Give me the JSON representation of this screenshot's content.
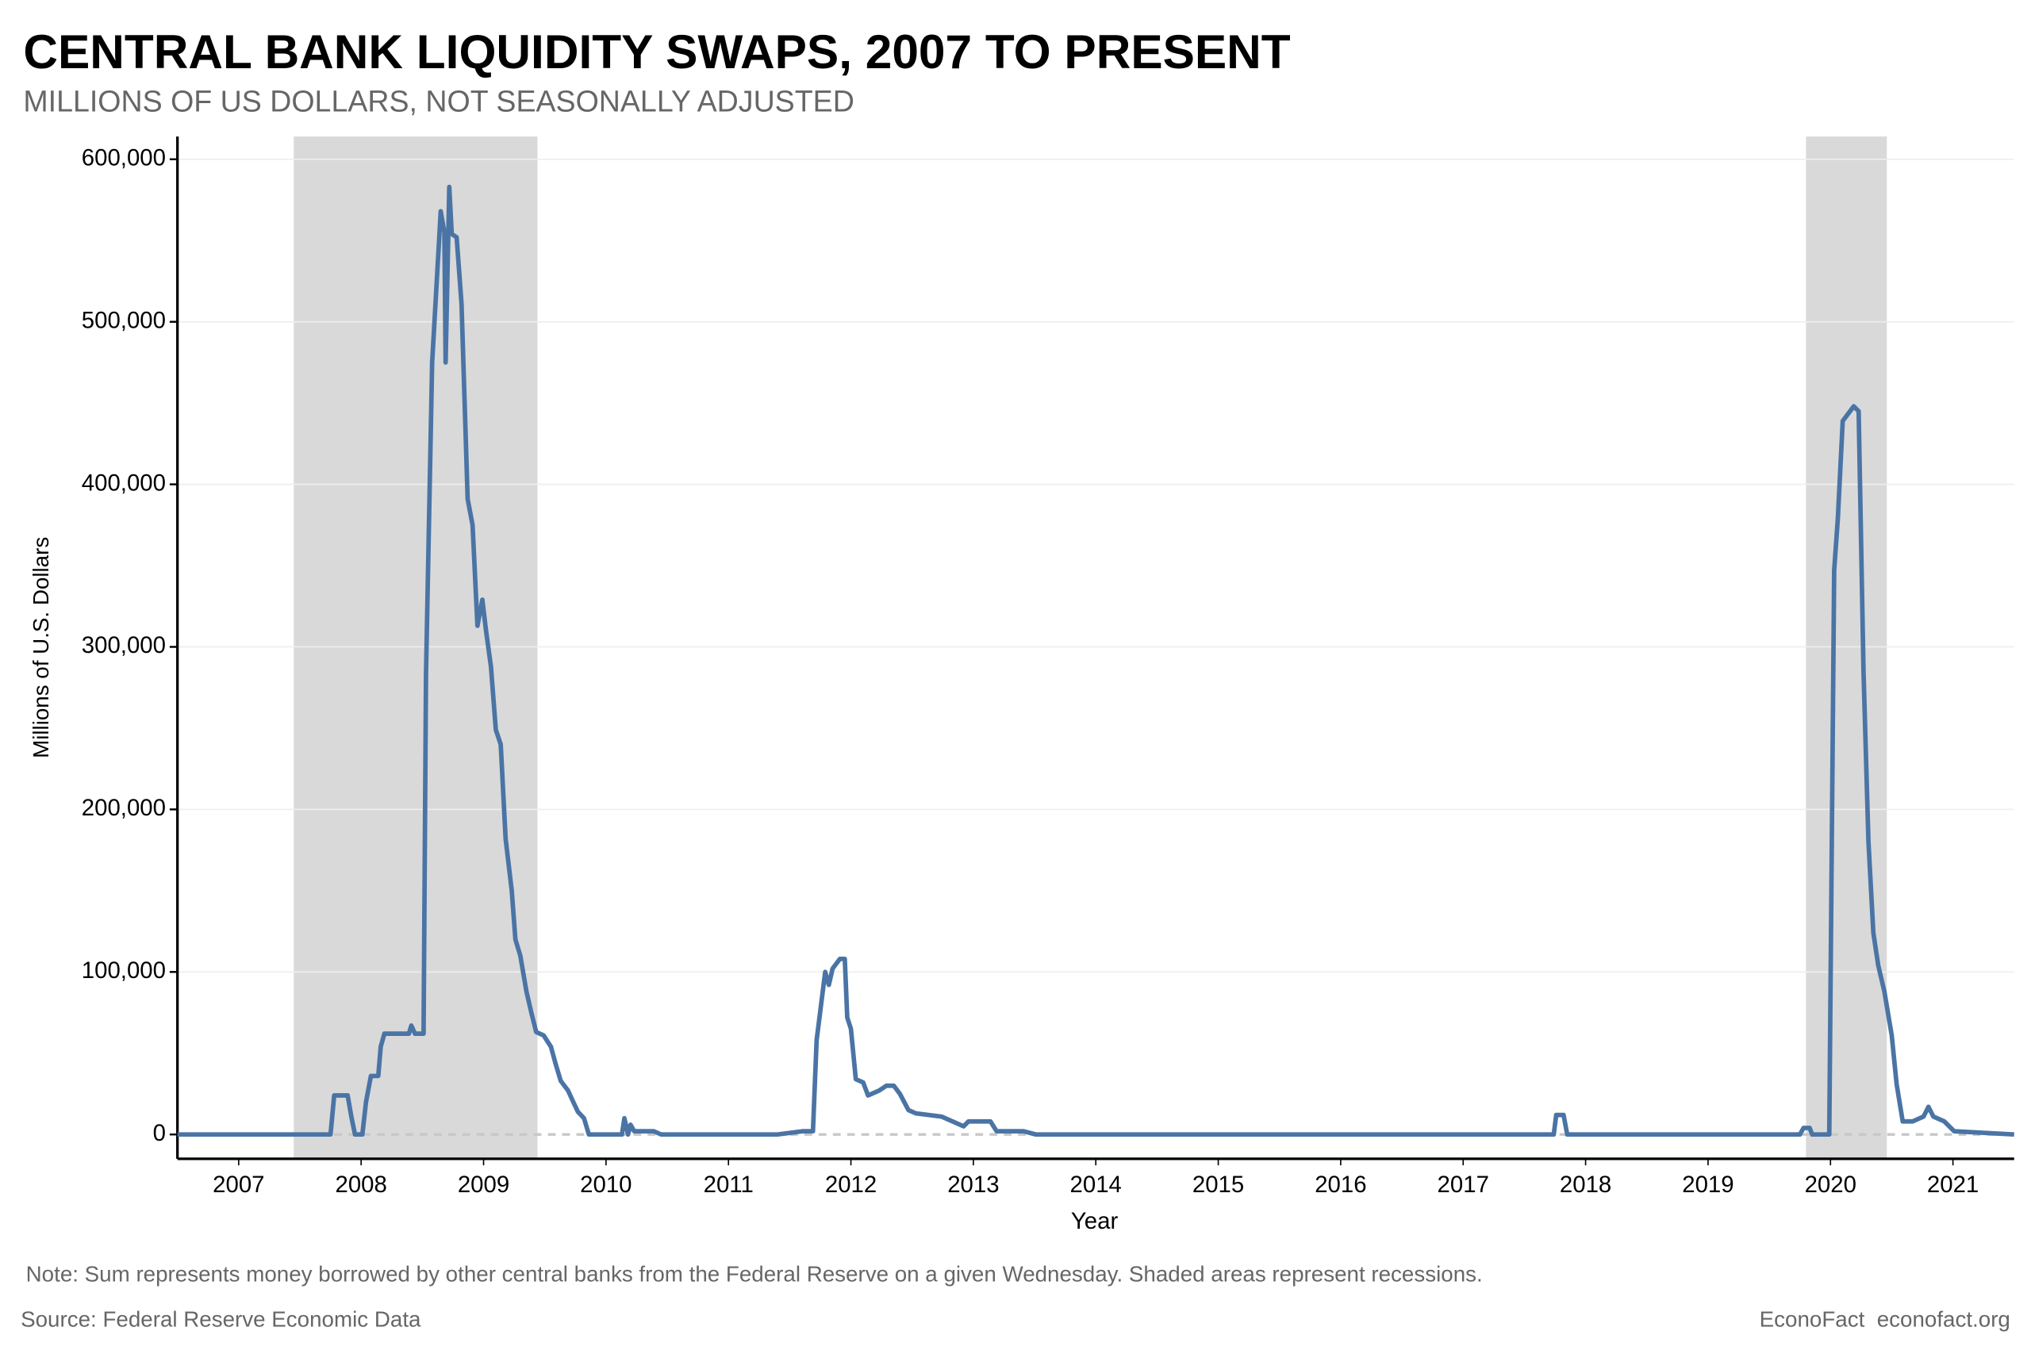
{
  "chart_data": {
    "type": "line",
    "title": "CENTRAL BANK LIQUIDITY SWAPS, 2007 TO PRESENT",
    "subtitle": "MILLIONS OF US DOLLARS, NOT SEASONALLY ADJUSTED",
    "y_label": "Millions of U.S. Dollars",
    "x_label": "Year",
    "note": "Note: Sum represents money borrowed by other central banks from the Federal Reserve on a given Wednesday. Shaded areas represent recessions.",
    "source": "Source: Federal Reserve Economic Data",
    "credit": "EconoFact  econofact.org",
    "color": "#4a74a5",
    "recession_color": "#d9d9d9",
    "recessions": [
      [
        2007.45,
        2009.44
      ],
      [
        2019.8,
        2020.46
      ]
    ],
    "grid": true,
    "zero_line": true,
    "xlim": [
      2006.5,
      2021.5
    ],
    "xticks": [
      2007,
      2008,
      2009,
      2010,
      2011,
      2012,
      2013,
      2014,
      2015,
      2016,
      2017,
      2018,
      2019,
      2020,
      2021
    ],
    "ylim": [
      -15000,
      614000
    ],
    "yticks": [
      0,
      {
        "value": 100000,
        "label": "100,000"
      },
      {
        "value": 200000,
        "label": "200,000"
      },
      {
        "value": 300000,
        "label": "300,000"
      },
      {
        "value": 400000,
        "label": "400,000"
      },
      {
        "value": 500000,
        "label": "500,000"
      },
      {
        "value": 600000,
        "label": "600,000"
      }
    ],
    "x": [
      2006.5,
      2007.75,
      2007.78,
      2007.89,
      2007.92,
      2007.95,
      2008.01,
      2008.04,
      2008.08,
      2008.14,
      2008.16,
      2008.19,
      2008.39,
      2008.41,
      2008.44,
      2008.51,
      2008.53,
      2008.58,
      2008.65,
      2008.68,
      2008.69,
      2008.72,
      2008.74,
      2008.78,
      2008.82,
      2008.84,
      2008.87,
      2008.91,
      2008.95,
      2008.99,
      2009.02,
      2009.06,
      2009.1,
      2009.14,
      2009.18,
      2009.23,
      2009.26,
      2009.3,
      2009.35,
      2009.39,
      2009.43,
      2009.49,
      2009.55,
      2009.59,
      2009.63,
      2009.69,
      2009.72,
      2009.77,
      2009.82,
      2009.86,
      2010.13,
      2010.15,
      2010.18,
      2010.2,
      2010.23,
      2010.39,
      2010.45,
      2011.4,
      2011.61,
      2011.69,
      2011.72,
      2011.79,
      2011.82,
      2011.85,
      2011.91,
      2011.95,
      2011.97,
      2012.0,
      2012.04,
      2012.1,
      2012.14,
      2012.23,
      2012.29,
      2012.35,
      2012.4,
      2012.47,
      2012.53,
      2012.74,
      2012.83,
      2012.92,
      2012.96,
      2013.14,
      2013.19,
      2013.41,
      2013.51,
      2017.74,
      2017.76,
      2017.82,
      2017.85,
      2019.75,
      2019.78,
      2019.83,
      2019.85,
      2019.99,
      2020.03,
      2020.06,
      2020.1,
      2020.14,
      2020.19,
      2020.23,
      2020.27,
      2020.31,
      2020.35,
      2020.39,
      2020.44,
      2020.5,
      2020.54,
      2020.59,
      2020.67,
      2020.76,
      2020.8,
      2020.84,
      2020.93,
      2021.01,
      2021.5
    ],
    "values": [
      0,
      0,
      24000,
      24000,
      11000,
      0,
      0,
      20000,
      36000,
      36000,
      54000,
      62000,
      62000,
      67000,
      62000,
      62000,
      284000,
      475000,
      568000,
      555000,
      475000,
      583000,
      554000,
      552000,
      511000,
      463000,
      391000,
      375000,
      313000,
      329000,
      310000,
      288000,
      249000,
      240000,
      182000,
      150000,
      120000,
      110000,
      88000,
      75000,
      63000,
      61000,
      54000,
      43000,
      33000,
      27000,
      22000,
      14000,
      10000,
      0,
      0,
      10000,
      0,
      6000,
      2000,
      2000,
      0,
      0,
      2000,
      2000,
      58000,
      100000,
      92000,
      102000,
      108000,
      108000,
      72000,
      65000,
      34000,
      32000,
      24000,
      27000,
      30000,
      30000,
      25000,
      15000,
      13000,
      11000,
      8000,
      5000,
      8000,
      8000,
      2000,
      2000,
      0,
      0,
      12000,
      12000,
      0,
      0,
      4000,
      4000,
      0,
      0,
      347000,
      379000,
      439000,
      443000,
      448000,
      445000,
      284000,
      180000,
      124000,
      104000,
      88000,
      61000,
      31000,
      8000,
      8000,
      11000,
      17000,
      11000,
      8000,
      2000,
      0
    ]
  }
}
